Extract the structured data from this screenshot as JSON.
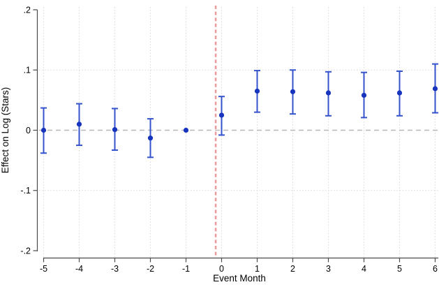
{
  "chart_data": {
    "type": "scatter",
    "title": "",
    "xlabel": "Event Month",
    "ylabel": "Effect on Log (Stars)",
    "xlim": [
      -5.6,
      6.15
    ],
    "ylim": [
      -0.2,
      0.2
    ],
    "x": [
      -5,
      -4,
      -3,
      -2,
      -1,
      0,
      1,
      2,
      3,
      4,
      5,
      6
    ],
    "series": [
      {
        "name": "estimate",
        "values": [
          0.0,
          0.01,
          0.001,
          -0.013,
          0.0,
          0.025,
          0.065,
          0.064,
          0.062,
          0.058,
          0.062,
          0.069
        ]
      },
      {
        "name": "ci_lower",
        "values": [
          -0.038,
          -0.025,
          -0.033,
          -0.045,
          null,
          -0.008,
          0.03,
          0.027,
          0.024,
          0.021,
          0.024,
          0.029
        ]
      },
      {
        "name": "ci_upper",
        "values": [
          0.037,
          0.044,
          0.036,
          0.019,
          null,
          0.056,
          0.099,
          0.1,
          0.097,
          0.096,
          0.098,
          0.11
        ]
      }
    ],
    "reference_month": -1,
    "xticks": [
      {
        "value": -5,
        "label": "-5"
      },
      {
        "value": -4,
        "label": "-4"
      },
      {
        "value": -3,
        "label": "-3"
      },
      {
        "value": -2,
        "label": "-2"
      },
      {
        "value": -1,
        "label": "-1"
      },
      {
        "value": 0,
        "label": "0"
      },
      {
        "value": 1,
        "label": "1"
      },
      {
        "value": 2,
        "label": "2"
      },
      {
        "value": 3,
        "label": "3"
      },
      {
        "value": 4,
        "label": "4"
      },
      {
        "value": 5,
        "label": "5"
      },
      {
        "value": 6,
        "label": "6"
      }
    ],
    "yticks": [
      {
        "value": 0.2,
        "label": ".2"
      },
      {
        "value": 0.1,
        "label": ".1"
      },
      {
        "value": 0.0,
        "label": "0"
      },
      {
        "value": -0.1,
        "label": "-.1"
      },
      {
        "value": -0.2,
        "label": "-.2"
      }
    ],
    "grid_y": [
      0.1,
      -0.1
    ],
    "grid_on": true,
    "legend": null,
    "reference_lines": {
      "vline_x": -0.165,
      "hline_y": 0
    },
    "colors": {
      "marker": "#1634bd",
      "ci_bar": "#3553cd",
      "vline": "#ec9b9b",
      "zero_line": "#b8b8b8",
      "grid": "#d7d7e0",
      "axis": "#4a4a4a",
      "text": "#000000"
    }
  }
}
